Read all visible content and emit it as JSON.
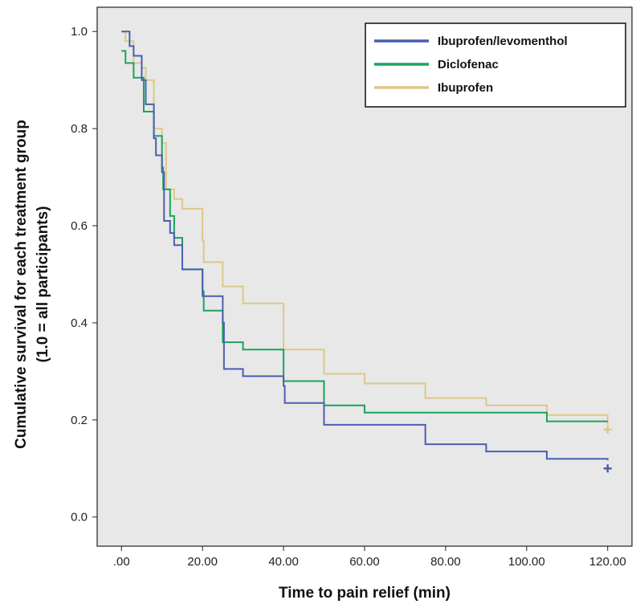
{
  "chart_data": {
    "type": "line",
    "subtype": "kaplan-meier step",
    "xlabel": "Time to pain relief (min)",
    "ylabel_lines": [
      "Cumulative survival for each treatment group",
      "(1.0 = all participants)"
    ],
    "xlim": [
      -6,
      126
    ],
    "ylim": [
      -0.06,
      1.05
    ],
    "x_ticks": [
      0,
      20,
      40,
      60,
      80,
      100,
      120
    ],
    "x_tick_labels": [
      ".00",
      "20.00",
      "40.00",
      "60.00",
      "80.00",
      "100.00",
      "120.00"
    ],
    "y_ticks": [
      0.0,
      0.2,
      0.4,
      0.6,
      0.8,
      1.0
    ],
    "y_tick_labels": [
      "0.0",
      "0.2",
      "0.4",
      "0.6",
      "0.8",
      "1.0"
    ],
    "grid": false,
    "legend_position": "top-right",
    "background_color": "#e8e8e8",
    "series": [
      {
        "name": "Ibuprofen/levomenthol",
        "color": "#4a5fb0",
        "censored_at": [
          [
            120,
            0.1
          ]
        ],
        "steps": [
          [
            0,
            1.0
          ],
          [
            2,
            0.97
          ],
          [
            3,
            0.95
          ],
          [
            5,
            0.9
          ],
          [
            6,
            0.85
          ],
          [
            8,
            0.78
          ],
          [
            8.5,
            0.745
          ],
          [
            10,
            0.71
          ],
          [
            10.5,
            0.61
          ],
          [
            12,
            0.585
          ],
          [
            13,
            0.56
          ],
          [
            15,
            0.51
          ],
          [
            20,
            0.455
          ],
          [
            25,
            0.4
          ],
          [
            25.3,
            0.305
          ],
          [
            30,
            0.29
          ],
          [
            40,
            0.27
          ],
          [
            40.3,
            0.235
          ],
          [
            50,
            0.19
          ],
          [
            75,
            0.15
          ],
          [
            90,
            0.135
          ],
          [
            105,
            0.12
          ],
          [
            120,
            0.117
          ]
        ]
      },
      {
        "name": "Diclofenac",
        "color": "#1aa35e",
        "censored_at": [],
        "steps": [
          [
            0,
            0.96
          ],
          [
            1,
            0.935
          ],
          [
            3,
            0.905
          ],
          [
            5,
            0.905
          ],
          [
            5.5,
            0.835
          ],
          [
            8,
            0.785
          ],
          [
            10,
            0.72
          ],
          [
            10.3,
            0.675
          ],
          [
            12,
            0.62
          ],
          [
            13,
            0.575
          ],
          [
            15,
            0.51
          ],
          [
            20,
            0.465
          ],
          [
            20.3,
            0.425
          ],
          [
            25,
            0.36
          ],
          [
            30,
            0.345
          ],
          [
            40,
            0.28
          ],
          [
            50,
            0.23
          ],
          [
            60,
            0.215
          ],
          [
            105,
            0.197
          ],
          [
            120,
            0.197
          ]
        ]
      },
      {
        "name": "Ibuprofen",
        "color": "#ddc788",
        "censored_at": [
          [
            120,
            0.18
          ]
        ],
        "steps": [
          [
            0,
            1.0
          ],
          [
            1,
            0.98
          ],
          [
            3,
            0.935
          ],
          [
            5,
            0.925
          ],
          [
            6,
            0.9
          ],
          [
            8,
            0.8
          ],
          [
            10,
            0.77
          ],
          [
            11,
            0.675
          ],
          [
            13,
            0.655
          ],
          [
            15,
            0.635
          ],
          [
            20,
            0.57
          ],
          [
            20.3,
            0.525
          ],
          [
            25,
            0.475
          ],
          [
            30,
            0.44
          ],
          [
            40,
            0.345
          ],
          [
            50,
            0.295
          ],
          [
            60,
            0.275
          ],
          [
            75,
            0.245
          ],
          [
            90,
            0.23
          ],
          [
            105,
            0.21
          ],
          [
            120,
            0.19
          ]
        ]
      }
    ]
  }
}
